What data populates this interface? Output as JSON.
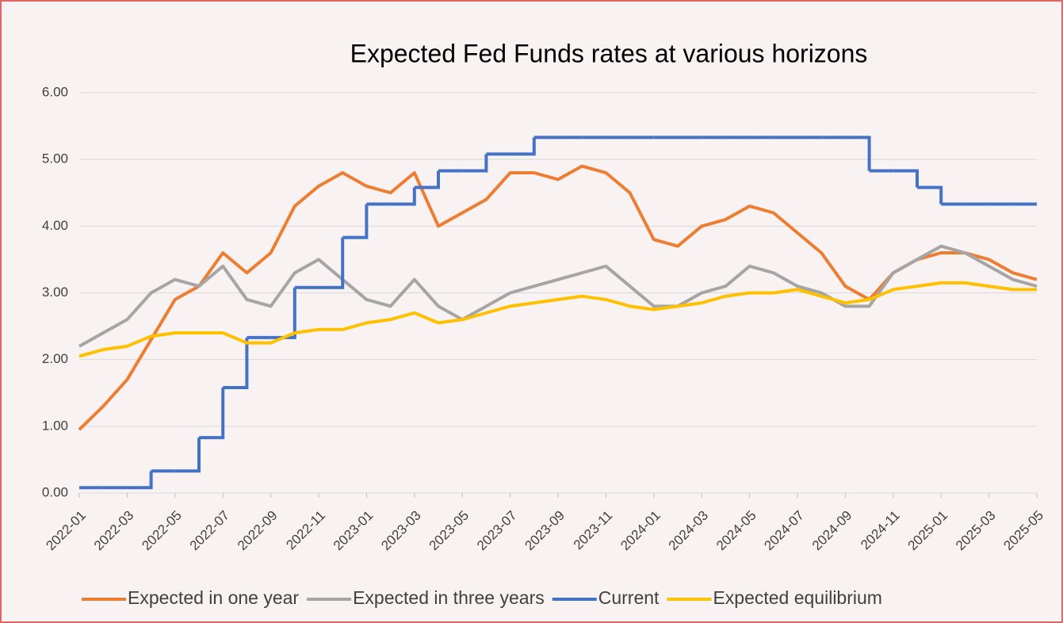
{
  "chart_data": {
    "type": "line",
    "title": "Expected Fed Funds rates at various horizons",
    "x": [
      "2022-01",
      "2022-02",
      "2022-03",
      "2022-04",
      "2022-05",
      "2022-06",
      "2022-07",
      "2022-08",
      "2022-09",
      "2022-10",
      "2022-11",
      "2022-12",
      "2023-01",
      "2023-02",
      "2023-03",
      "2023-04",
      "2023-05",
      "2023-06",
      "2023-07",
      "2023-08",
      "2023-09",
      "2023-10",
      "2023-11",
      "2023-12",
      "2024-01",
      "2024-02",
      "2024-03",
      "2024-04",
      "2024-05",
      "2024-06",
      "2024-07",
      "2024-08",
      "2024-09",
      "2024-10",
      "2024-11",
      "2024-12",
      "2025-01",
      "2025-02",
      "2025-03",
      "2025-04",
      "2025-05"
    ],
    "xticks": [
      "2022-01",
      "2022-03",
      "2022-05",
      "2022-07",
      "2022-09",
      "2022-11",
      "2023-01",
      "2023-03",
      "2023-05",
      "2023-07",
      "2023-09",
      "2023-11",
      "2024-01",
      "2024-03",
      "2024-05",
      "2024-07",
      "2024-09",
      "2024-11",
      "2025-01",
      "2025-03",
      "2025-05"
    ],
    "ylim": [
      0,
      6
    ],
    "yticks": [
      {
        "value": 0,
        "label": "0.00"
      },
      {
        "value": 1,
        "label": "1.00"
      },
      {
        "value": 2,
        "label": "2.00"
      },
      {
        "value": 3,
        "label": "3.00"
      },
      {
        "value": 4,
        "label": "4.00"
      },
      {
        "value": 5,
        "label": "5.00"
      },
      {
        "value": 6,
        "label": "6.00"
      }
    ],
    "grid": true,
    "legend": "bottom",
    "series": [
      {
        "name": "Expected in one year",
        "color": "#ed7d31",
        "values": [
          0.95,
          1.3,
          1.7,
          2.3,
          2.9,
          3.1,
          3.6,
          3.3,
          3.6,
          4.3,
          4.6,
          4.8,
          4.6,
          4.5,
          4.8,
          4.0,
          4.2,
          4.4,
          4.8,
          4.8,
          4.7,
          4.9,
          4.8,
          4.5,
          3.8,
          3.7,
          4.0,
          4.1,
          4.3,
          4.2,
          3.9,
          3.6,
          3.1,
          2.9,
          3.3,
          3.5,
          3.6,
          3.6,
          3.5,
          3.3,
          3.2
        ]
      },
      {
        "name": "Expected in three years",
        "color": "#a5a5a5",
        "values": [
          2.2,
          2.4,
          2.6,
          3.0,
          3.2,
          3.1,
          3.4,
          2.9,
          2.8,
          3.3,
          3.5,
          3.2,
          2.9,
          2.8,
          3.2,
          2.8,
          2.6,
          2.8,
          3.0,
          3.1,
          3.2,
          3.3,
          3.4,
          3.1,
          2.8,
          2.8,
          3.0,
          3.1,
          3.4,
          3.3,
          3.1,
          3.0,
          2.8,
          2.8,
          3.3,
          3.5,
          3.7,
          3.6,
          3.4,
          3.2,
          3.1
        ]
      },
      {
        "name": "Current",
        "color": "#4472c4",
        "step": true,
        "values": [
          0.08,
          0.08,
          0.08,
          0.33,
          0.33,
          0.83,
          1.58,
          2.33,
          2.33,
          3.08,
          3.08,
          3.83,
          4.33,
          4.33,
          4.58,
          4.83,
          4.83,
          5.08,
          5.08,
          5.33,
          5.33,
          5.33,
          5.33,
          5.33,
          5.33,
          5.33,
          5.33,
          5.33,
          5.33,
          5.33,
          5.33,
          5.33,
          5.33,
          4.83,
          4.83,
          4.58,
          4.33,
          4.33,
          4.33,
          4.33,
          4.33
        ]
      },
      {
        "name": "Expected equilibrium",
        "color": "#ffc000",
        "values": [
          2.05,
          2.15,
          2.2,
          2.35,
          2.4,
          2.4,
          2.4,
          2.25,
          2.25,
          2.4,
          2.45,
          2.45,
          2.55,
          2.6,
          2.7,
          2.55,
          2.6,
          2.7,
          2.8,
          2.85,
          2.9,
          2.95,
          2.9,
          2.8,
          2.75,
          2.8,
          2.85,
          2.95,
          3.0,
          3.0,
          3.05,
          2.95,
          2.85,
          2.9,
          3.05,
          3.1,
          3.15,
          3.15,
          3.1,
          3.05,
          3.05
        ]
      }
    ]
  }
}
